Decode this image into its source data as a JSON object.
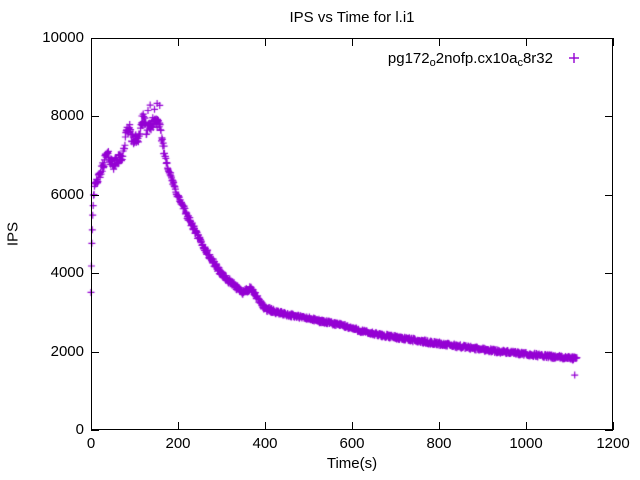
{
  "title": "IPS vs Time for l.i1",
  "legend": {
    "parts": [
      {
        "text": "pg172",
        "sub": false
      },
      {
        "text": "o",
        "sub": true
      },
      {
        "text": "2nofp.cx10a",
        "sub": false
      },
      {
        "text": "c",
        "sub": true
      },
      {
        "text": "8r32",
        "sub": false
      }
    ],
    "series_label_plain": "pg172o2nofp.cx10ac8r32",
    "marker_glyph": "+",
    "marker_color": "#9400D3",
    "position": "top-right-inside"
  },
  "chart_data": {
    "type": "scatter",
    "title": "IPS vs Time for l.i1",
    "xlabel": "Time(s)",
    "ylabel": "IPS",
    "xlim": [
      0,
      1200
    ],
    "ylim": [
      0,
      10000
    ],
    "xticks": [
      0,
      200,
      400,
      600,
      800,
      1000,
      1200
    ],
    "yticks": [
      0,
      2000,
      4000,
      6000,
      8000,
      10000
    ],
    "grid": false,
    "marker": "plus",
    "marker_color": "#9400D3",
    "sample_interval_s": 1,
    "t_end": 1117,
    "noise_seed": 42,
    "noise_bands": [
      [
        5,
        80
      ],
      [
        20,
        90
      ],
      [
        75,
        130
      ],
      [
        170,
        140
      ],
      [
        300,
        80
      ],
      [
        420,
        70
      ],
      [
        1200,
        45
      ]
    ],
    "trend": [
      [
        0,
        3550
      ],
      [
        1,
        4250
      ],
      [
        2,
        4750
      ],
      [
        3,
        5150
      ],
      [
        4,
        5500
      ],
      [
        5,
        5800
      ],
      [
        6,
        6000
      ],
      [
        8,
        6150
      ],
      [
        10,
        6250
      ],
      [
        13,
        6330
      ],
      [
        16,
        6400
      ],
      [
        20,
        6500
      ],
      [
        25,
        6650
      ],
      [
        30,
        6850
      ],
      [
        34,
        6980
      ],
      [
        38,
        7020
      ],
      [
        42,
        6940
      ],
      [
        47,
        6830
      ],
      [
        52,
        6780
      ],
      [
        57,
        6840
      ],
      [
        62,
        6890
      ],
      [
        67,
        6930
      ],
      [
        72,
        7000
      ],
      [
        76,
        7180
      ],
      [
        79,
        7420
      ],
      [
        82,
        7600
      ],
      [
        86,
        7700
      ],
      [
        90,
        7640
      ],
      [
        93,
        7500
      ],
      [
        97,
        7390
      ],
      [
        102,
        7410
      ],
      [
        107,
        7440
      ],
      [
        112,
        7560
      ],
      [
        116,
        7790
      ],
      [
        120,
        7890
      ],
      [
        124,
        7830
      ],
      [
        128,
        7620
      ],
      [
        132,
        7680
      ],
      [
        136,
        7760
      ],
      [
        140,
        7810
      ],
      [
        144,
        7860
      ],
      [
        148,
        7890
      ],
      [
        152,
        7850
      ],
      [
        156,
        7760
      ],
      [
        160,
        7620
      ],
      [
        164,
        7380
      ],
      [
        168,
        7120
      ],
      [
        172,
        6920
      ],
      [
        177,
        6710
      ],
      [
        182,
        6520
      ],
      [
        188,
        6310
      ],
      [
        194,
        6130
      ],
      [
        200,
        5960
      ],
      [
        208,
        5770
      ],
      [
        216,
        5590
      ],
      [
        224,
        5410
      ],
      [
        232,
        5230
      ],
      [
        240,
        5060
      ],
      [
        248,
        4890
      ],
      [
        256,
        4730
      ],
      [
        264,
        4580
      ],
      [
        272,
        4440
      ],
      [
        280,
        4300
      ],
      [
        288,
        4170
      ],
      [
        296,
        4050
      ],
      [
        305,
        3930
      ],
      [
        314,
        3830
      ],
      [
        323,
        3740
      ],
      [
        332,
        3660
      ],
      [
        341,
        3590
      ],
      [
        350,
        3520
      ],
      [
        358,
        3560
      ],
      [
        366,
        3590
      ],
      [
        374,
        3510
      ],
      [
        382,
        3370
      ],
      [
        390,
        3240
      ],
      [
        398,
        3140
      ],
      [
        406,
        3080
      ],
      [
        414,
        3040
      ],
      [
        424,
        3010
      ],
      [
        434,
        2990
      ],
      [
        446,
        2960
      ],
      [
        458,
        2930
      ],
      [
        470,
        2905
      ],
      [
        482,
        2880
      ],
      [
        494,
        2855
      ],
      [
        506,
        2830
      ],
      [
        518,
        2800
      ],
      [
        530,
        2770
      ],
      [
        542,
        2745
      ],
      [
        554,
        2720
      ],
      [
        566,
        2700
      ],
      [
        578,
        2670
      ],
      [
        590,
        2630
      ],
      [
        602,
        2590
      ],
      [
        614,
        2550
      ],
      [
        626,
        2510
      ],
      [
        638,
        2480
      ],
      [
        650,
        2450
      ],
      [
        662,
        2425
      ],
      [
        674,
        2405
      ],
      [
        686,
        2390
      ],
      [
        698,
        2370
      ],
      [
        710,
        2350
      ],
      [
        724,
        2325
      ],
      [
        738,
        2300
      ],
      [
        752,
        2275
      ],
      [
        766,
        2250
      ],
      [
        780,
        2230
      ],
      [
        794,
        2210
      ],
      [
        808,
        2190
      ],
      [
        822,
        2170
      ],
      [
        836,
        2150
      ],
      [
        850,
        2130
      ],
      [
        864,
        2110
      ],
      [
        878,
        2090
      ],
      [
        892,
        2070
      ],
      [
        906,
        2050
      ],
      [
        920,
        2030
      ],
      [
        934,
        2010
      ],
      [
        948,
        1995
      ],
      [
        962,
        1980
      ],
      [
        976,
        1960
      ],
      [
        990,
        1945
      ],
      [
        1004,
        1930
      ],
      [
        1018,
        1915
      ],
      [
        1032,
        1900
      ],
      [
        1046,
        1885
      ],
      [
        1060,
        1872
      ],
      [
        1074,
        1858
      ],
      [
        1088,
        1846
      ],
      [
        1100,
        1836
      ],
      [
        1110,
        1828
      ],
      [
        1117,
        1822
      ]
    ],
    "extra_points": [
      [
        117,
        8010
      ],
      [
        120,
        8060
      ],
      [
        131,
        8150
      ],
      [
        136,
        8290
      ],
      [
        146,
        8180
      ],
      [
        152,
        8330
      ],
      [
        158,
        8280
      ],
      [
        1112,
        1400
      ]
    ]
  }
}
